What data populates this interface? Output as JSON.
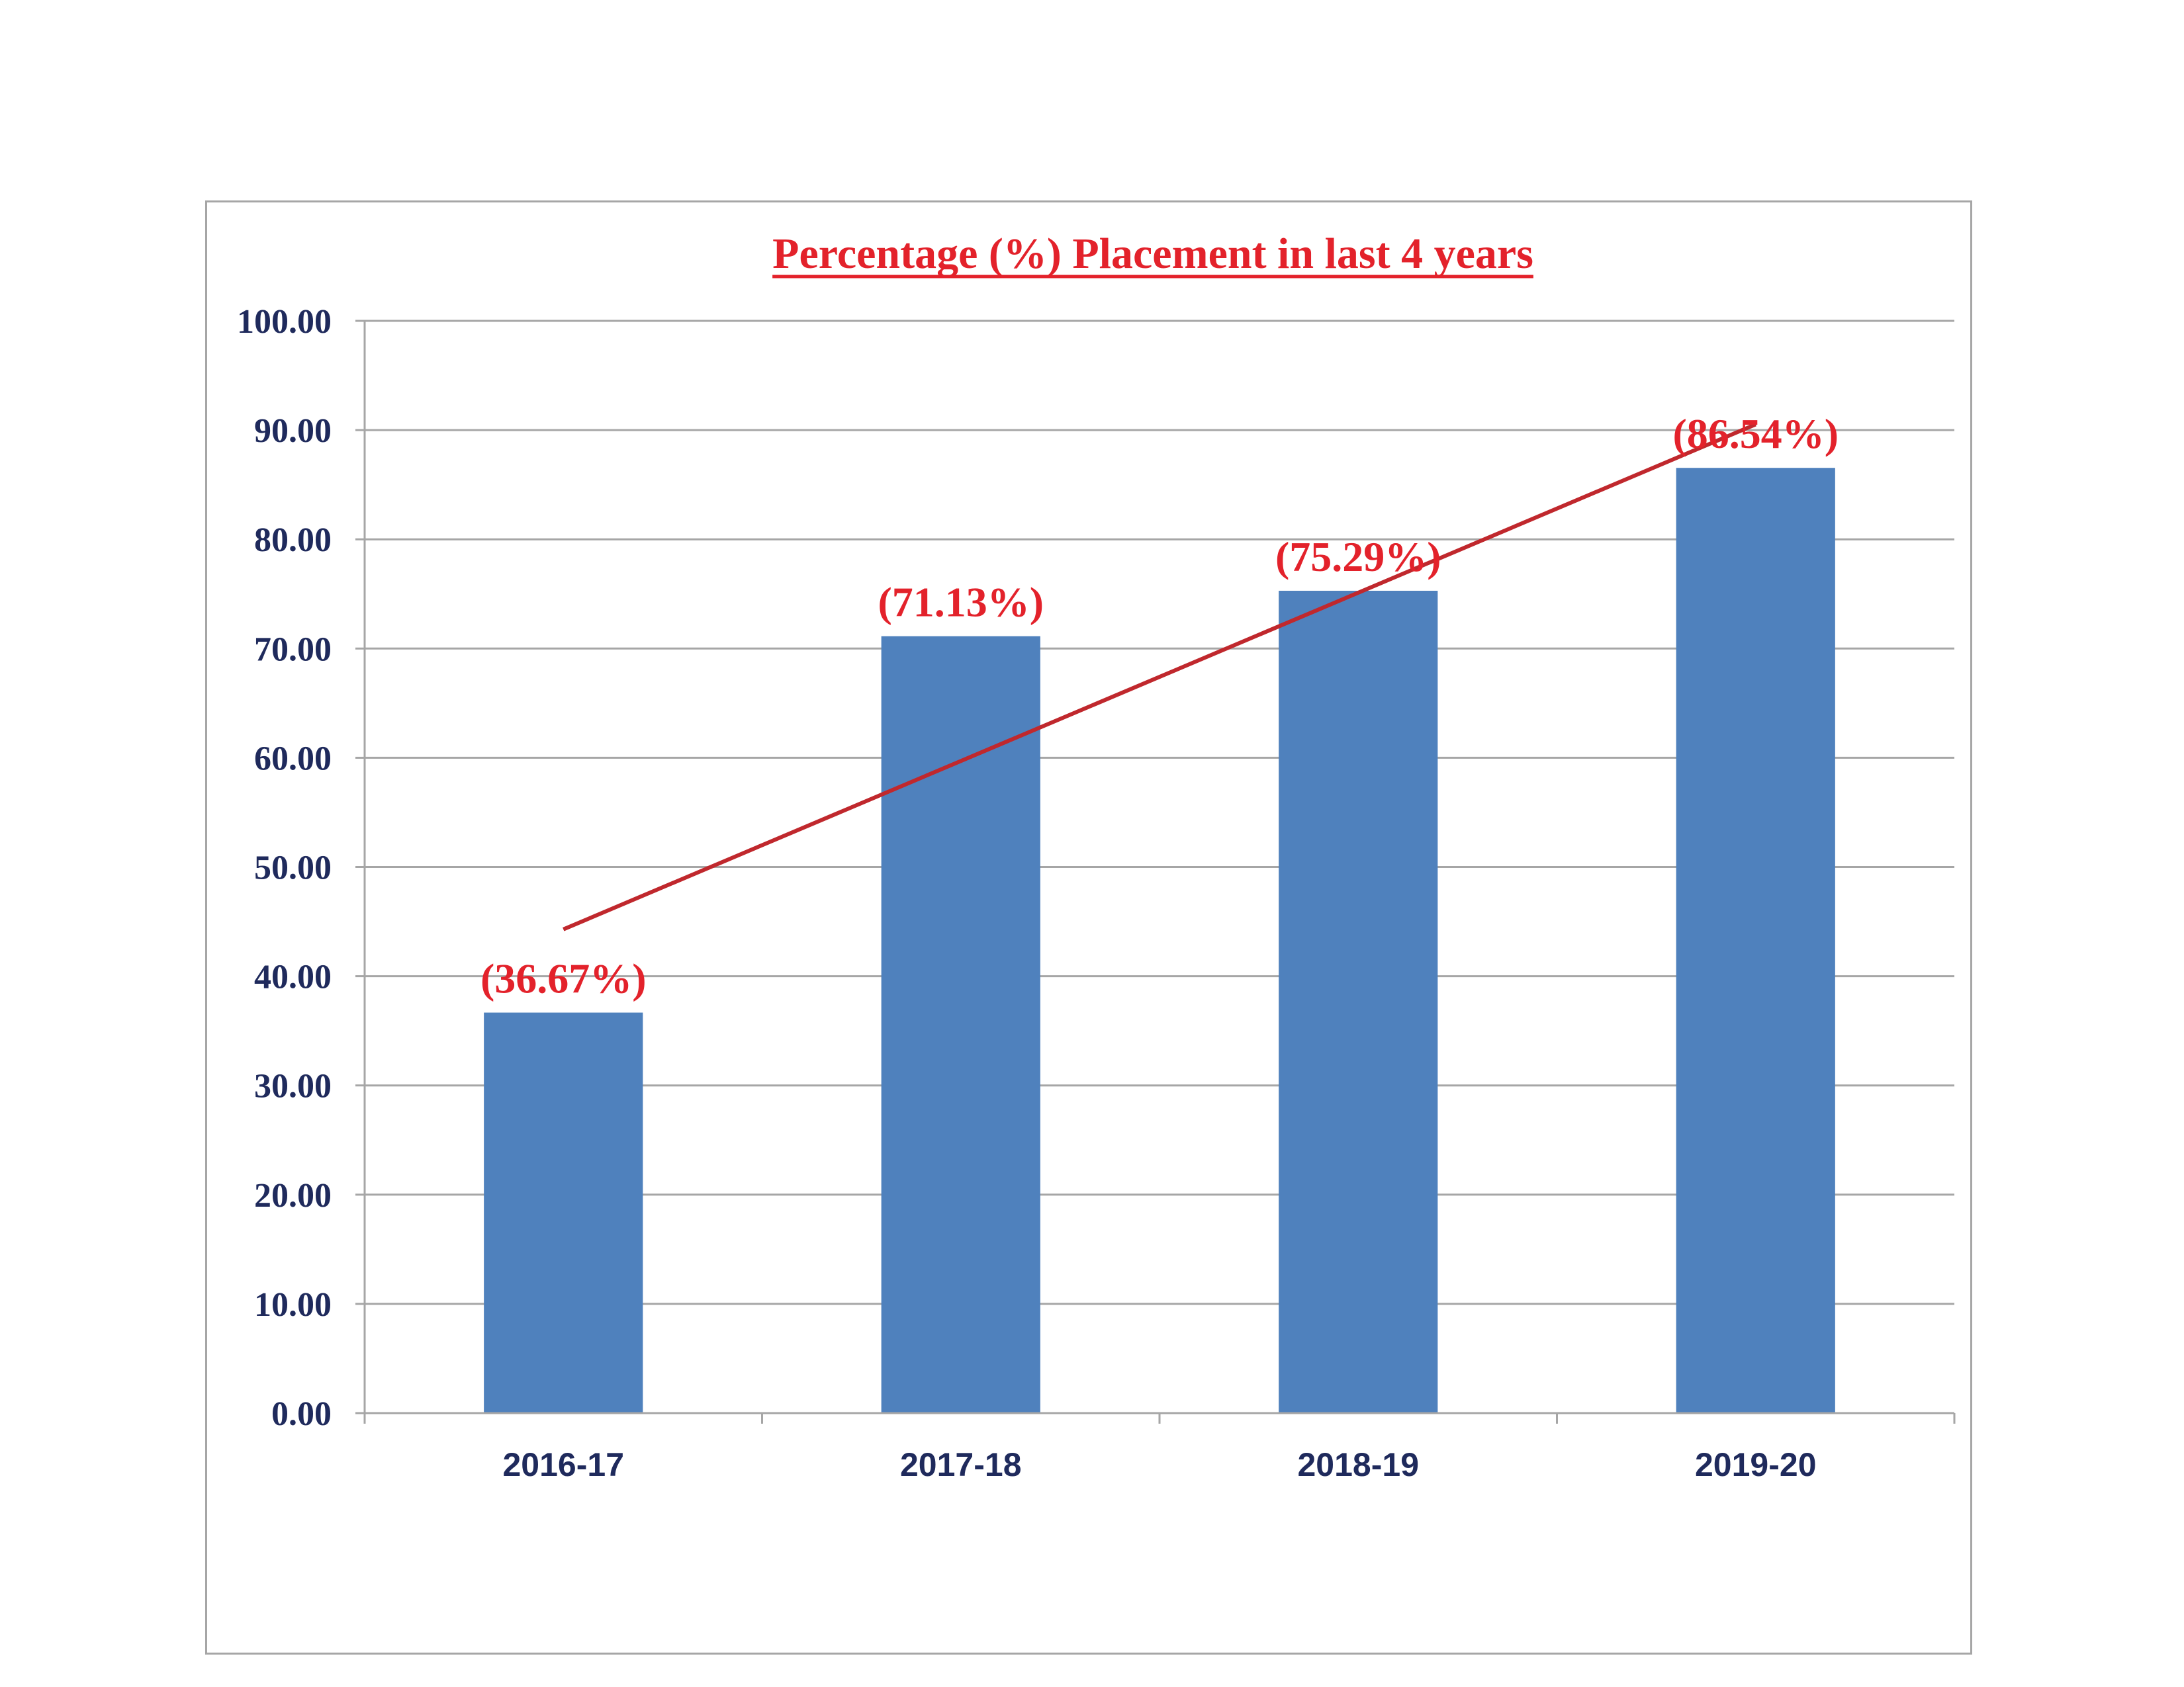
{
  "chart_data": {
    "type": "bar",
    "title": "Percentage (%) Placement in last 4 years",
    "categories": [
      "2016-17",
      "2017-18",
      "2018-19",
      "2019-20"
    ],
    "values": [
      36.67,
      71.13,
      75.29,
      86.54
    ],
    "data_labels": [
      "(36.67%)",
      "(71.13%)",
      "(75.29%)",
      "(86.54%)"
    ],
    "ylim": [
      0,
      100
    ],
    "yticks": [
      "0.00",
      "10.00",
      "20.00",
      "30.00",
      "40.00",
      "50.00",
      "60.00",
      "70.00",
      "80.00",
      "90.00",
      "100.00"
    ],
    "trendline": {
      "type": "linear",
      "start": 44.29,
      "end": 90.52
    },
    "grid": true,
    "legend": "none",
    "colors": {
      "bar": "#4f81bd",
      "trendline": "#c0282d",
      "title": "#e3222b",
      "data_label": "#e3222b",
      "tick_text": "#1f2a5c",
      "grid": "#a6a6a6"
    }
  }
}
